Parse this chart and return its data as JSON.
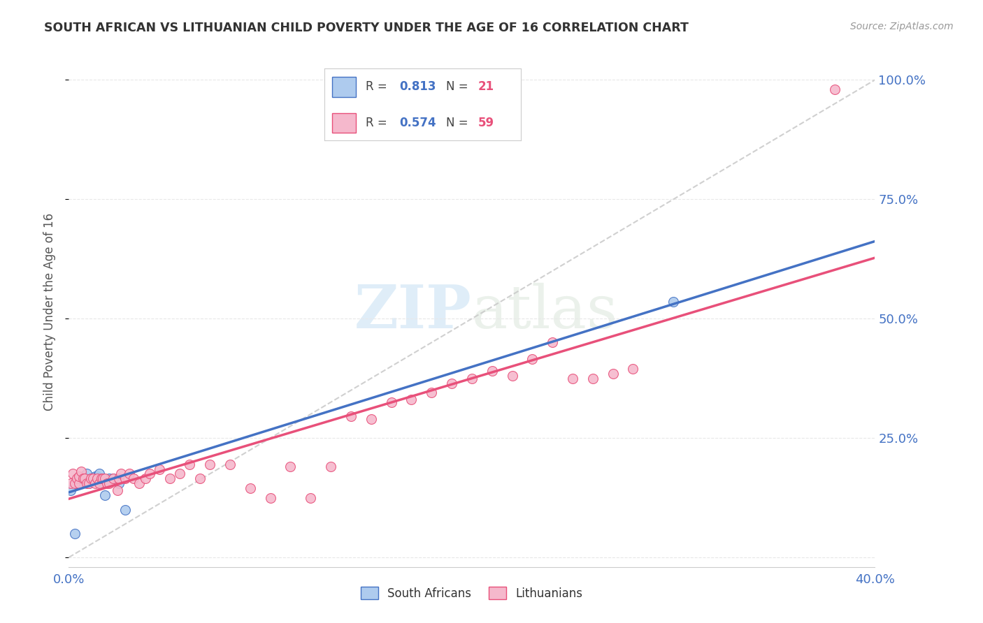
{
  "title": "SOUTH AFRICAN VS LITHUANIAN CHILD POVERTY UNDER THE AGE OF 16 CORRELATION CHART",
  "source": "Source: ZipAtlas.com",
  "ylabel": "Child Poverty Under the Age of 16",
  "xlim": [
    0.0,
    0.4
  ],
  "ylim": [
    -0.02,
    1.05
  ],
  "xticks": [
    0.0,
    0.1,
    0.2,
    0.3,
    0.4
  ],
  "xtick_labels": [
    "0.0%",
    "",
    "",
    "",
    "40.0%"
  ],
  "ytick_positions": [
    0.0,
    0.25,
    0.5,
    0.75,
    1.0
  ],
  "ytick_labels_right": [
    "",
    "25.0%",
    "50.0%",
    "75.0%",
    "100.0%"
  ],
  "sa_color": "#aecbee",
  "sa_line_color": "#4472c4",
  "lit_color": "#f5b8cc",
  "lit_line_color": "#e8507a",
  "diag_line_color": "#c8c8c8",
  "sa_R": 0.813,
  "sa_N": 21,
  "lit_R": 0.574,
  "lit_N": 59,
  "sa_x": [
    0.001,
    0.003,
    0.004,
    0.005,
    0.006,
    0.007,
    0.008,
    0.009,
    0.01,
    0.011,
    0.012,
    0.013,
    0.014,
    0.015,
    0.016,
    0.018,
    0.02,
    0.022,
    0.025,
    0.028,
    0.3
  ],
  "sa_y": [
    0.14,
    0.05,
    0.155,
    0.165,
    0.155,
    0.17,
    0.165,
    0.175,
    0.155,
    0.165,
    0.165,
    0.17,
    0.17,
    0.175,
    0.155,
    0.13,
    0.165,
    0.165,
    0.155,
    0.1,
    0.535
  ],
  "lit_x": [
    0.001,
    0.002,
    0.003,
    0.004,
    0.005,
    0.005,
    0.006,
    0.007,
    0.008,
    0.009,
    0.01,
    0.011,
    0.012,
    0.013,
    0.014,
    0.015,
    0.016,
    0.017,
    0.018,
    0.019,
    0.02,
    0.022,
    0.024,
    0.025,
    0.026,
    0.028,
    0.03,
    0.032,
    0.035,
    0.038,
    0.04,
    0.045,
    0.05,
    0.055,
    0.06,
    0.065,
    0.07,
    0.08,
    0.09,
    0.1,
    0.11,
    0.12,
    0.13,
    0.14,
    0.15,
    0.16,
    0.17,
    0.18,
    0.19,
    0.2,
    0.21,
    0.22,
    0.23,
    0.24,
    0.25,
    0.26,
    0.27,
    0.28,
    0.38
  ],
  "lit_y": [
    0.155,
    0.175,
    0.155,
    0.165,
    0.155,
    0.17,
    0.18,
    0.165,
    0.165,
    0.155,
    0.155,
    0.165,
    0.165,
    0.155,
    0.165,
    0.155,
    0.165,
    0.165,
    0.165,
    0.155,
    0.155,
    0.165,
    0.14,
    0.165,
    0.175,
    0.165,
    0.175,
    0.165,
    0.155,
    0.165,
    0.175,
    0.185,
    0.165,
    0.175,
    0.195,
    0.165,
    0.195,
    0.195,
    0.145,
    0.125,
    0.19,
    0.125,
    0.19,
    0.295,
    0.29,
    0.325,
    0.33,
    0.345,
    0.365,
    0.375,
    0.39,
    0.38,
    0.415,
    0.45,
    0.375,
    0.375,
    0.385,
    0.395,
    0.98
  ],
  "watermark_zip": "ZIP",
  "watermark_atlas": "atlas",
  "background_color": "#ffffff",
  "grid_color": "#e8e8e8"
}
